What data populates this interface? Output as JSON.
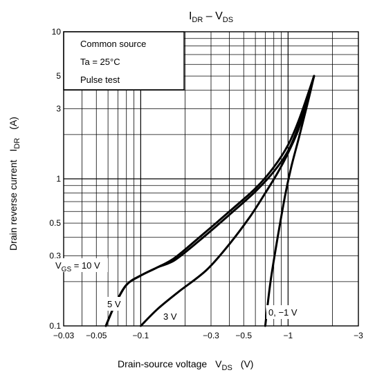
{
  "chart_data": {
    "type": "line",
    "title": {
      "I": "I",
      "I_sub": "DR",
      "dash": " – ",
      "V": "V",
      "V_sub": "DS"
    },
    "xlabel": {
      "main": "Drain-source voltage",
      "sym": "V",
      "sub": "DS",
      "unit": "(V)"
    },
    "ylabel": {
      "main": "Drain reverse current",
      "sym": "I",
      "sub": "DR",
      "unit": "(A)"
    },
    "x_scale": "log",
    "y_scale": "log",
    "xlim": [
      -0.03,
      -3
    ],
    "ylim": [
      0.1,
      10
    ],
    "x_ticks": [
      {
        "v": 0.03,
        "label": "−0.03"
      },
      {
        "v": 0.05,
        "label": "−0.05"
      },
      {
        "v": 0.1,
        "label": "−0.1"
      },
      {
        "v": 0.3,
        "label": "−0.3"
      },
      {
        "v": 0.5,
        "label": "−0.5"
      },
      {
        "v": 1,
        "label": "−1"
      },
      {
        "v": 3,
        "label": "−3"
      }
    ],
    "y_ticks": [
      {
        "v": 0.1,
        "label": "0.1"
      },
      {
        "v": 0.3,
        "label": "0.3"
      },
      {
        "v": 0.5,
        "label": "0.5"
      },
      {
        "v": 1,
        "label": "1"
      },
      {
        "v": 3,
        "label": "3"
      },
      {
        "v": 5,
        "label": "5"
      },
      {
        "v": 10,
        "label": "10"
      }
    ],
    "conditions": [
      "Common source",
      "Ta = 25°C",
      "Pulse test"
    ],
    "series": [
      {
        "label": "V",
        "label_sub": "GS",
        "label_rest": " = 10 V",
        "x": [
          0.058,
          0.067,
          0.08,
          0.1,
          0.13,
          0.17,
          0.25,
          0.4,
          0.6,
          0.8,
          1.0,
          1.2,
          1.5
        ],
        "y": [
          0.1,
          0.14,
          0.19,
          0.22,
          0.25,
          0.29,
          0.4,
          0.6,
          0.86,
          1.2,
          1.7,
          2.6,
          5.0
        ]
      },
      {
        "label": "5 V",
        "x": [
          0.058,
          0.067,
          0.08,
          0.1,
          0.13,
          0.17,
          0.25,
          0.4,
          0.6,
          0.8,
          1.0,
          1.2,
          1.5
        ],
        "y": [
          0.1,
          0.14,
          0.19,
          0.22,
          0.25,
          0.28,
          0.38,
          0.57,
          0.82,
          1.12,
          1.55,
          2.4,
          5.0
        ]
      },
      {
        "label": "3 V",
        "x": [
          0.1,
          0.13,
          0.18,
          0.28,
          0.4,
          0.55,
          0.7,
          0.85,
          1.0,
          1.2,
          1.5
        ],
        "y": [
          0.1,
          0.13,
          0.17,
          0.24,
          0.36,
          0.55,
          0.8,
          1.1,
          1.5,
          2.3,
          5.0
        ]
      },
      {
        "label": "0, −1 V",
        "x": [
          0.7,
          0.76,
          0.85,
          0.95,
          1.05,
          1.2,
          1.35,
          1.5
        ],
        "y": [
          0.1,
          0.2,
          0.4,
          0.75,
          1.2,
          2.0,
          3.2,
          5.0
        ]
      }
    ]
  }
}
